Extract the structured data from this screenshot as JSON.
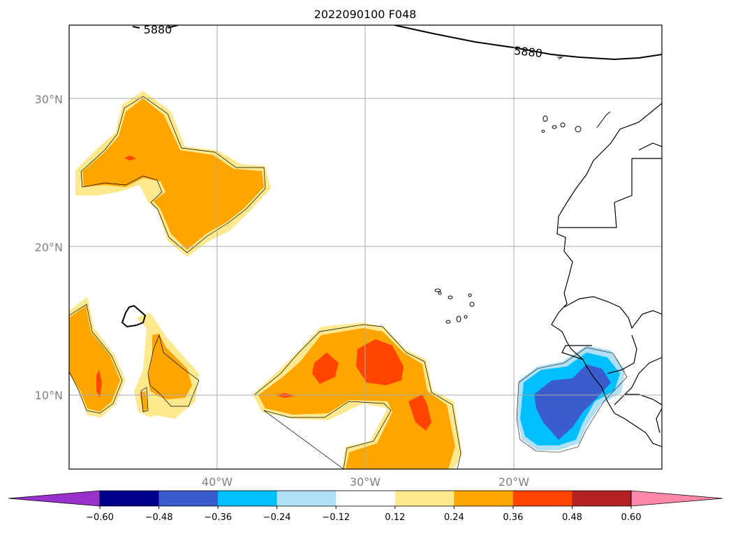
{
  "title": "2022090100 F048",
  "map": {
    "lon_range": [
      -50,
      -10
    ],
    "lat_range": [
      5,
      35
    ],
    "projection": "PlateCarree",
    "gridlines": true,
    "lat_ticks": [
      "30°N",
      "20°N",
      "10°N"
    ],
    "lon_ticks": [
      "40°W",
      "30°W",
      "20°W"
    ],
    "contour_labels": [
      "5880",
      "5880"
    ],
    "contour_level": 5880
  },
  "colorbar": {
    "orientation": "horizontal",
    "extend": "both",
    "tick_labels": [
      "−0.60",
      "−0.48",
      "−0.36",
      "−0.24",
      "−0.12",
      "0.12",
      "0.24",
      "0.36",
      "0.48",
      "0.60"
    ],
    "colors": [
      "#9932cc",
      "#00008b",
      "#3a5ccc",
      "#00bfff",
      "#afe0f5",
      "#ffffff",
      "#ffe98f",
      "#ffa500",
      "#ff4500",
      "#b22222",
      "#ff88aa"
    ]
  }
}
